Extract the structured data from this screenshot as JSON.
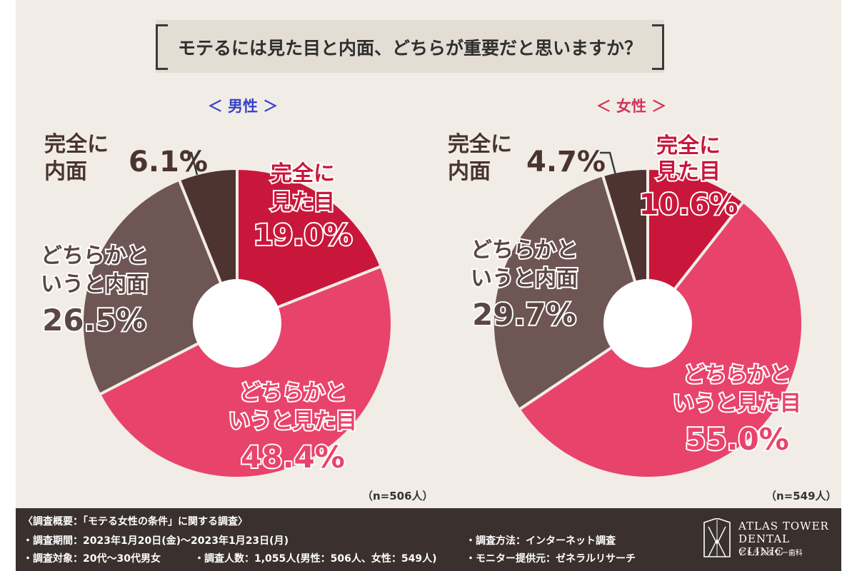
{
  "title": "モテるには見た目と内面、どちらが重要だと思いますか？",
  "chart_data": [
    {
      "type": "pie",
      "title": "＜ 男性 ＞",
      "n_label": "（n=506人）",
      "slices": [
        {
          "label_lines": [
            "完全に",
            "見た目"
          ],
          "value": 19.0,
          "value_label": "19.0%",
          "color": "#c8173a"
        },
        {
          "label_lines": [
            "どちらかと",
            "いうと見た目"
          ],
          "value": 48.4,
          "value_label": "48.4%",
          "color": "#e8436b"
        },
        {
          "label_lines": [
            "どちらかと",
            "いうと内面"
          ],
          "value": 26.5,
          "value_label": "26.5%",
          "color": "#6e5654"
        },
        {
          "label_lines": [
            "完全に",
            "内面"
          ],
          "value": 6.1,
          "value_label": "6.1%",
          "color": "#4e3431"
        }
      ]
    },
    {
      "type": "pie",
      "title": "＜ 女性 ＞",
      "n_label": "（n=549人）",
      "slices": [
        {
          "label_lines": [
            "完全に",
            "見た目"
          ],
          "value": 10.6,
          "value_label": "10.6%",
          "color": "#c8173a"
        },
        {
          "label_lines": [
            "どちらかと",
            "いうと見た目"
          ],
          "value": 55.0,
          "value_label": "55.0%",
          "color": "#e8436b"
        },
        {
          "label_lines": [
            "どちらかと",
            "いうと内面"
          ],
          "value": 29.7,
          "value_label": "29.7%",
          "color": "#6e5654"
        },
        {
          "label_lines": [
            "完全に",
            "内面"
          ],
          "value": 4.7,
          "value_label": "4.7%",
          "color": "#4e3431"
        }
      ]
    }
  ],
  "footer": {
    "overview": "〈調査概要：「モテる女性の条件」に関する調査〉",
    "period": "・調査期間：2023年1月20日(金)～2023年1月23日(月)",
    "method": "・調査方法：インターネット調査",
    "target": "・調査対象：20代～30代男女",
    "count": "・調査人数：1,055人(男性：506人、女性：549人)",
    "provider": "・モニター提供元：ゼネラルリサーチ"
  },
  "logo": {
    "line1": "ATLAS TOWER",
    "line2": "DENTAL CLINIC",
    "line3": "アトラスタワー歯科"
  }
}
